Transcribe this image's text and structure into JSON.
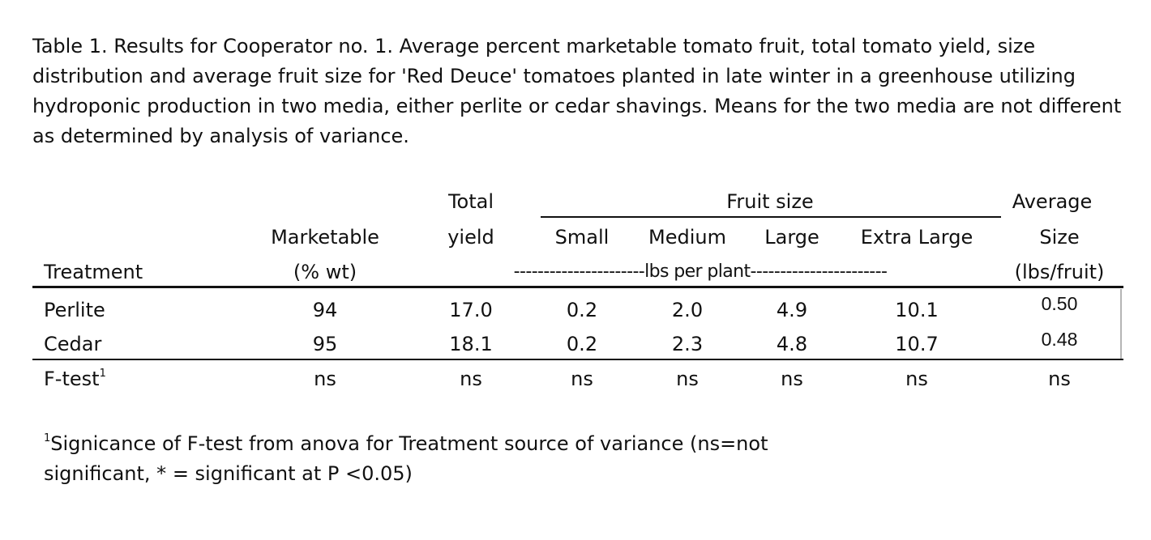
{
  "caption": "Table 1.  Results for Cooperator no. 1. Average  percent  marketable tomato fruit, total tomato yield,  size distribution and  average fruit size for 'Red Deuce' tomatoes planted in late winter in a greenhouse utilizing hydroponic production in two media, either perlite or cedar shavings.  Means for the two media are not different as determined by analysis of variance.",
  "headers": {
    "treatment": "Treatment",
    "marketable": "Marketable",
    "marketable_unit": "(% wt)",
    "total": "Total",
    "yield": "yield",
    "fruit_size": "Fruit size",
    "small": "Small",
    "medium": "Medium",
    "large": "Large",
    "extra_large": "Extra Large",
    "average": "Average",
    "size": "Size",
    "size_unit": "(lbs/fruit)",
    "lbs_per_plant": "----------------------lbs per plant-----------------------"
  },
  "rows": [
    {
      "treatment": "Perlite",
      "marketable": "94",
      "yield": "17.0",
      "small": "0.2",
      "medium": "2.0",
      "large": "4.9",
      "extra_large": "10.1",
      "avg_size": "0.50"
    },
    {
      "treatment": "Cedar",
      "marketable": "95",
      "yield": "18.1",
      "small": "0.2",
      "medium": "2.3",
      "large": "4.8",
      "extra_large": "10.7",
      "avg_size": "0.48"
    }
  ],
  "ftest": {
    "label": "F-test",
    "sup": "1",
    "values": [
      "ns",
      "ns",
      "ns",
      "ns",
      "ns",
      "ns",
      "ns"
    ]
  },
  "footnote": {
    "sup": "1",
    "line1": "Signicance of F-test from anova for Treatment source of variance  (ns=not",
    "line2": "significant, * = significant at P <0.05)"
  }
}
